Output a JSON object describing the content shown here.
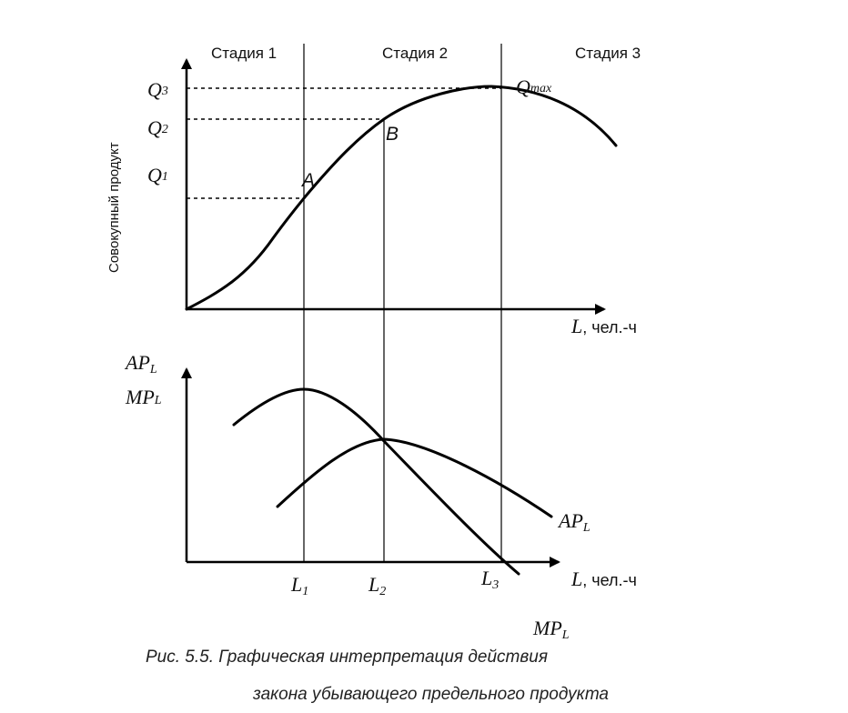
{
  "stages": [
    "Стадия 1",
    "Стадия 2",
    "Стадия 3"
  ],
  "top_chart": {
    "y_axis_label": "Совокупный продукт",
    "q_labels": [
      {
        "base": "Q",
        "sub": "3"
      },
      {
        "base": "Q",
        "sub": "2"
      },
      {
        "base": "Q",
        "sub": "1"
      }
    ],
    "points": {
      "a": "A",
      "b": "B"
    },
    "qmax": {
      "base": "Q",
      "sub": "max"
    },
    "x_axis": {
      "var": "L",
      "unit": ", чел.-ч"
    }
  },
  "bottom_chart": {
    "y_labels": [
      {
        "base": "AP",
        "sub": "L"
      },
      {
        "base": "MP",
        "sub": "L"
      }
    ],
    "curve_labels": {
      "ap": {
        "base": "AP",
        "sub": "L"
      },
      "mp": {
        "base": "MP",
        "sub": "L"
      }
    },
    "x_ticks": [
      {
        "base": "L",
        "sub": "1"
      },
      {
        "base": "L",
        "sub": "2"
      },
      {
        "base": "L",
        "sub": "3"
      }
    ],
    "x_axis": {
      "var": "L",
      "unit": ", чел.-ч"
    }
  },
  "caption": {
    "line1": "Рис. 5.5. Графическая интерпретация действия",
    "line2": "закона убывающего предельного продукта"
  }
}
